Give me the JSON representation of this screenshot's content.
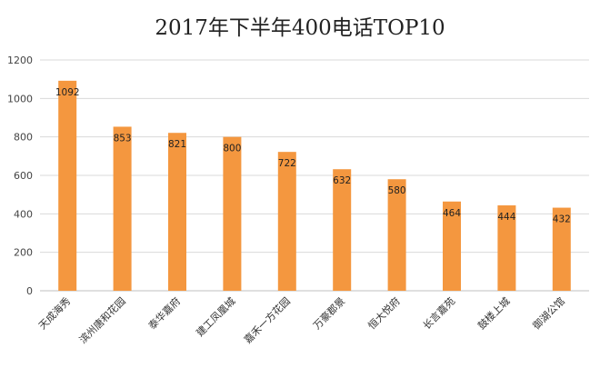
{
  "chart_data": {
    "type": "bar",
    "title": "2017年下半年400电话TOP10",
    "xlabel": "",
    "ylabel": "",
    "categories": [
      "天成海秀",
      "滨州唐和花园",
      "泰华嘉府",
      "建工凤凰城",
      "嘉禾一方花园",
      "万豪郡景",
      "恒大悦府",
      "长言嘉苑",
      "鼓楼上城",
      "御湖公馆"
    ],
    "values": [
      1092,
      853,
      821,
      800,
      722,
      632,
      580,
      464,
      444,
      432
    ],
    "y_ticks": [
      "0",
      "200",
      "400",
      "600",
      "800",
      "1000",
      "1200"
    ],
    "ylim": [
      0,
      1200
    ],
    "grid": true,
    "legend": "none",
    "bar_color": "#f4973f"
  }
}
